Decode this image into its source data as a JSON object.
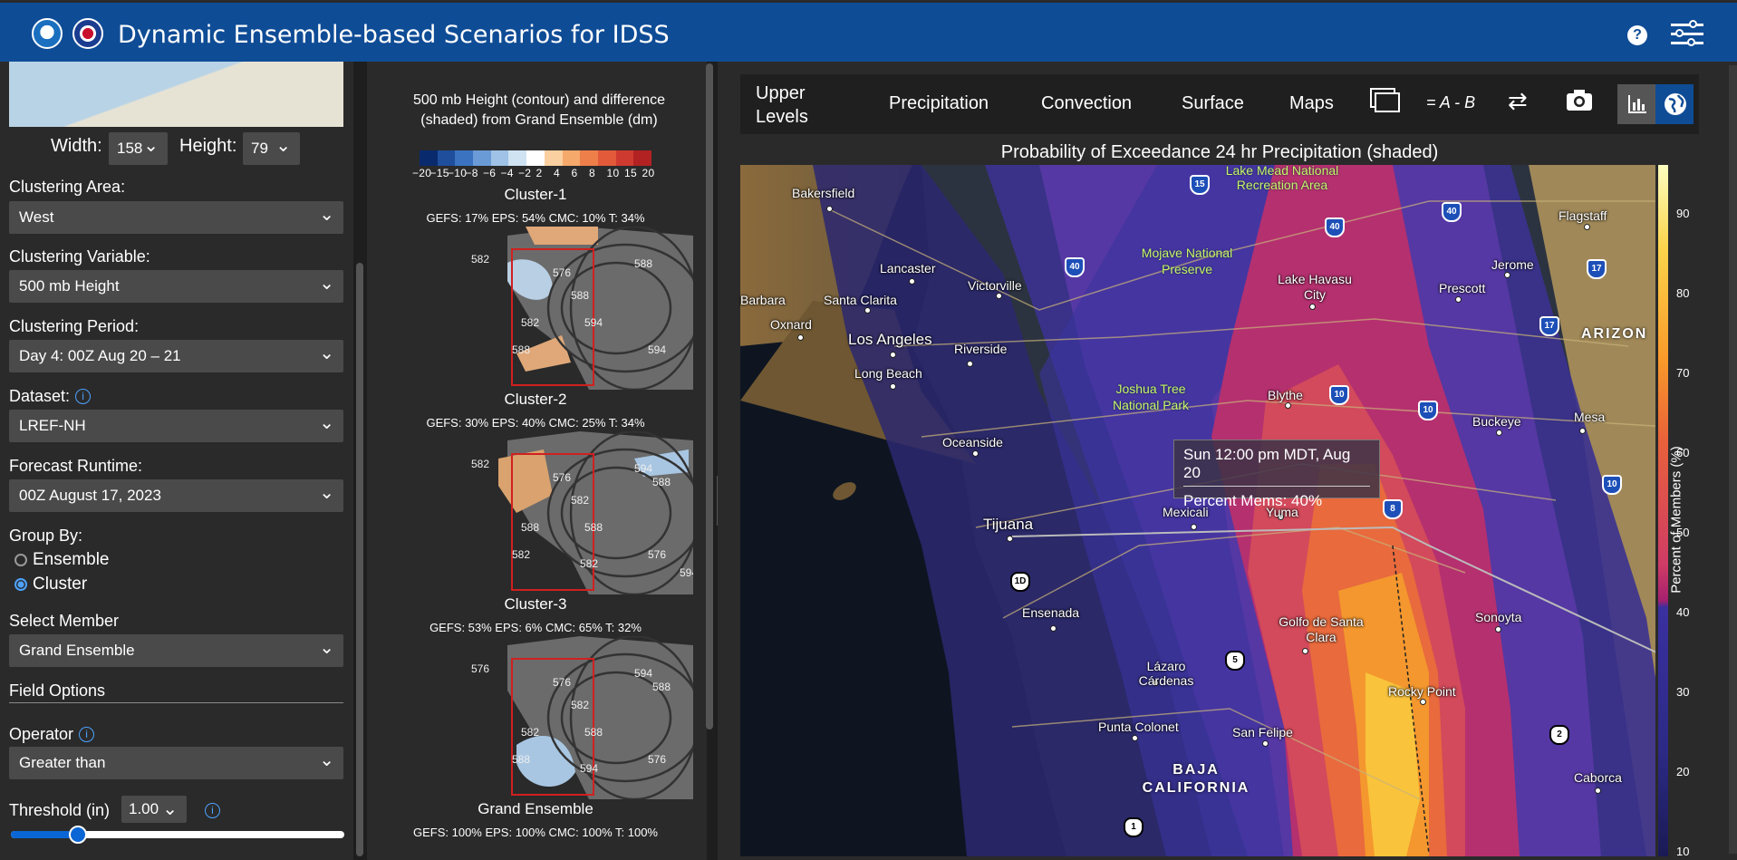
{
  "header": {
    "title": "Dynamic Ensemble-based Scenarios for IDSS"
  },
  "left": {
    "width_label": "Width:",
    "width_value": "158",
    "height_label": "Height:",
    "height_value": "79",
    "clustering_area_label": "Clustering Area:",
    "clustering_area": "West",
    "clustering_variable_label": "Clustering Variable:",
    "clustering_variable": "500 mb Height",
    "clustering_period_label": "Clustering Period:",
    "clustering_period": "Day 4: 00Z Aug 20 – 21",
    "dataset_label": "Dataset:",
    "dataset": "LREF-NH",
    "runtime_label": "Forecast Runtime:",
    "runtime": "00Z August 17, 2023",
    "group_by_label": "Group By:",
    "group_options": [
      "Ensemble",
      "Cluster"
    ],
    "group_selected": "Cluster",
    "member_label": "Select Member",
    "member": "Grand Ensemble",
    "field_options_label": "Field Options",
    "operator_label": "Operator",
    "operator": "Greater than",
    "threshold_label": "Threshold (in)",
    "threshold_value": "1.00",
    "threshold_slider_fraction": 0.2
  },
  "clusters": {
    "title": "500 mb Height (contour) and difference (shaded) from Grand Ensemble (dm)",
    "colorbar_ticks": [
      "−20",
      "−15",
      "−10",
      "−8",
      "−6",
      "−4",
      "−2",
      "2",
      "4",
      "6",
      "8",
      "10",
      "15",
      "20"
    ],
    "colorbar_colors": [
      "#0a2a6e",
      "#1f4e9c",
      "#3b73c0",
      "#6b9bd6",
      "#9fc2e6",
      "#cfe3f3",
      "#ffffff",
      "#fbd0a0",
      "#f5a96b",
      "#ee7f4a",
      "#e25a3a",
      "#cf3a30",
      "#b22222"
    ],
    "items": [
      {
        "name": "Cluster-1",
        "stats": "GEFS: 17%  EPS: 54%  CMC: 10%  T: 34%",
        "contours": [
          "582",
          "576",
          "588",
          "594",
          "588",
          "582",
          "588",
          "594"
        ]
      },
      {
        "name": "Cluster-2",
        "stats": "GEFS: 30%  EPS: 40%  CMC: 25%  T: 34%",
        "contours": [
          "582",
          "576",
          "582",
          "588",
          "594",
          "588",
          "582",
          "576",
          "588",
          "582",
          "594"
        ]
      },
      {
        "name": "Cluster-3",
        "stats": "GEFS: 53%  EPS: 6%  CMC: 65%  T: 32%",
        "contours": [
          "576",
          "576",
          "582",
          "588",
          "594",
          "582",
          "588",
          "576",
          "588",
          "594"
        ]
      },
      {
        "name": "Grand Ensemble",
        "stats": "GEFS: 100%  EPS: 100%  CMC: 100%  T: 100%"
      }
    ]
  },
  "toolbar": {
    "upper_levels": "Upper Levels",
    "precipitation": "Precipitation",
    "convection": "Convection",
    "surface": "Surface",
    "maps": "Maps",
    "diff": "= A - B"
  },
  "map": {
    "title": "Probability of Exceedance 24 hr Precipitation (shaded)",
    "tooltip_time": "Sun 12:00 pm MDT, Aug 20",
    "tooltip_value": "Percent Mems: 40%",
    "legend_label": "Percent of Members (%)",
    "legend_ticks": [
      "90",
      "80",
      "70",
      "60",
      "50",
      "40",
      "30",
      "20",
      "10"
    ],
    "places": [
      "Bakersfield",
      "Lancaster",
      "Victorville",
      "Santa Clarita",
      "Oxnard",
      "Barbara",
      "Los Angeles",
      "Long Beach",
      "Riverside",
      "Oceanside",
      "Tijuana",
      "Ensenada",
      "Mexicali",
      "Yuma",
      "Blythe",
      "Lake Havasu City",
      "Mojave National Preserve",
      "Joshua Tree National Park",
      "Lake Mead National Recreation Area",
      "Flagstaff",
      "Jerome",
      "Prescott",
      "Buckeye",
      "Mesa",
      "Golfo de Santa Clara",
      "Sonoyta",
      "Rocky Point",
      "Lázaro Cárdenas",
      "Punta Colonet",
      "San Felipe",
      "Caborca",
      "BAJA CALIFORNIA",
      "ARIZON"
    ],
    "shields": [
      "15",
      "40",
      "40",
      "40",
      "17",
      "17",
      "10",
      "10",
      "10",
      "8",
      "5",
      "1",
      "2",
      "1D"
    ]
  }
}
